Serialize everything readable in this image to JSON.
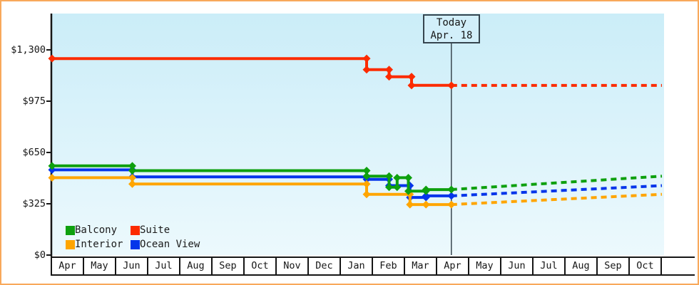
{
  "colors": {
    "frame_border": "#F8A95B",
    "plot_bg_top": "#CBEDF8",
    "plot_bg_bottom": "#ECF9FD",
    "axis": "#161616",
    "text": "#161616",
    "today_line": "#3A4750",
    "today_box_border": "#36454F",
    "today_box_bg": "#D2EFFA"
  },
  "chart_data": {
    "type": "line",
    "description": "Cabin price history by category (step lines with markers), solid before today and dashed forecast after today",
    "grid": false,
    "legend_position": "bottom-left",
    "x_axis": {
      "unit": "month",
      "tick_labels": [
        "Apr",
        "May",
        "Jun",
        "Jul",
        "Aug",
        "Sep",
        "Oct",
        "Nov",
        "Dec",
        "Jan",
        "Feb",
        "Mar",
        "Apr",
        "May",
        "Jun",
        "Jul",
        "Aug",
        "Sep",
        "Oct"
      ]
    },
    "y_axis": {
      "unit": "USD",
      "range": [
        0,
        1300
      ],
      "tick_values": [
        0,
        325,
        650,
        975,
        1300
      ],
      "tick_labels": [
        "$0",
        "$325",
        "$650",
        "$975",
        "$1,300"
      ]
    },
    "today": {
      "line1": "Today",
      "line2": "Apr. 18",
      "month_index": 12.44
    },
    "forecast_end_month_index": 19,
    "series": [
      {
        "name": "Balcony",
        "color": "#0EA00E",
        "points": [
          [
            0,
            565
          ],
          [
            2.5,
            565
          ],
          [
            2.5,
            535
          ],
          [
            9.8,
            535
          ],
          [
            9.8,
            500
          ],
          [
            10.5,
            500
          ],
          [
            10.5,
            430
          ],
          [
            10.75,
            430
          ],
          [
            10.75,
            490
          ],
          [
            11.1,
            490
          ],
          [
            11.1,
            405
          ],
          [
            11.65,
            405
          ],
          [
            11.65,
            415
          ],
          [
            12.44,
            415
          ]
        ],
        "forecast": [
          [
            12.44,
            415
          ],
          [
            19,
            500
          ]
        ]
      },
      {
        "name": "Suite",
        "color": "#FC2B00",
        "points": [
          [
            0,
            1245
          ],
          [
            9.8,
            1245
          ],
          [
            9.8,
            1175
          ],
          [
            10.5,
            1175
          ],
          [
            10.5,
            1130
          ],
          [
            11.2,
            1130
          ],
          [
            11.2,
            1075
          ],
          [
            12.44,
            1075
          ]
        ],
        "forecast": [
          [
            12.44,
            1075
          ],
          [
            19,
            1075
          ]
        ]
      },
      {
        "name": "Interior",
        "color": "#FFA500",
        "points": [
          [
            0,
            490
          ],
          [
            2.5,
            490
          ],
          [
            2.5,
            450
          ],
          [
            9.8,
            450
          ],
          [
            9.8,
            385
          ],
          [
            11.15,
            385
          ],
          [
            11.15,
            320
          ],
          [
            11.65,
            320
          ],
          [
            12.44,
            320
          ]
        ],
        "forecast": [
          [
            12.44,
            320
          ],
          [
            19,
            385
          ]
        ]
      },
      {
        "name": "Ocean View",
        "color": "#0435EA",
        "points": [
          [
            0,
            540
          ],
          [
            2.5,
            540
          ],
          [
            2.5,
            495
          ],
          [
            9.8,
            495
          ],
          [
            9.8,
            480
          ],
          [
            10.5,
            480
          ],
          [
            10.5,
            440
          ],
          [
            11.15,
            440
          ],
          [
            11.15,
            365
          ],
          [
            11.65,
            365
          ],
          [
            11.65,
            375
          ],
          [
            12.44,
            375
          ]
        ],
        "forecast": [
          [
            12.44,
            375
          ],
          [
            19,
            440
          ]
        ]
      }
    ],
    "legend": {
      "entries": [
        {
          "label": "Balcony",
          "color": "#0EA00E"
        },
        {
          "label": "Suite",
          "color": "#FC2B00"
        },
        {
          "label": "Interior",
          "color": "#FFA500"
        },
        {
          "label": "Ocean View",
          "color": "#0435EA"
        }
      ]
    }
  }
}
